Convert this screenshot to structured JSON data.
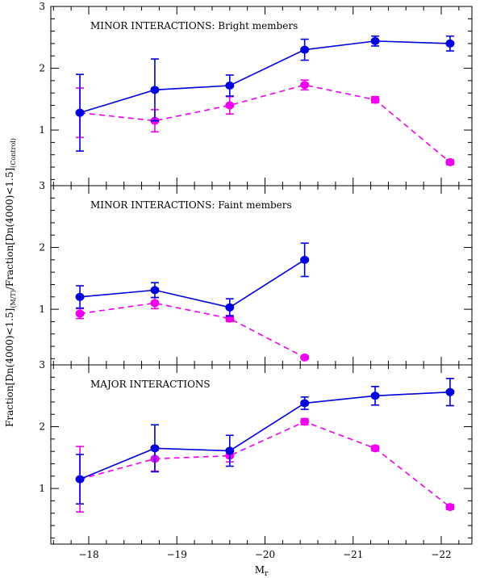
{
  "chart_data": {
    "type": "line",
    "xlabel": "M",
    "xlabel_subscript": "r",
    "ylabel_parts": [
      {
        "text": "Fraction[Dn(4000)<1.5]",
        "sub": false
      },
      {
        "text": "(M/T)",
        "sub": true
      },
      {
        "text": "/Fraction[Dn(4000)<1.5]",
        "sub": false
      },
      {
        "text": "(Control)",
        "sub": true
      }
    ],
    "x_ticks": [
      -18,
      -19,
      -20,
      -21,
      -22
    ],
    "x_tick_labels": [
      "−18",
      "−19",
      "−20",
      "−21",
      "−22"
    ],
    "xlim": [
      -17.5,
      -22.5
    ],
    "y_ticks": [
      1,
      2,
      3
    ],
    "y_tick_labels": [
      "1",
      "2",
      "3"
    ],
    "ylim": [
      0.1,
      3
    ],
    "x": [
      -17.9,
      -18.75,
      -19.6,
      -20.45,
      -21.25,
      -22.1
    ],
    "series_colors": {
      "blue": "#0000dd",
      "magenta": "#ee00ee"
    },
    "panels": [
      {
        "title": "MINOR INTERACTIONS: Bright members",
        "series": [
          {
            "name": "blue",
            "style": "solid",
            "values": [
              1.28,
              1.65,
              1.72,
              2.3,
              2.44,
              2.4
            ],
            "err": [
              0.62,
              0.5,
              0.17,
              0.17,
              0.08,
              0.12
            ],
            "x_index": [
              0,
              1,
              2,
              3,
              4,
              5
            ]
          },
          {
            "name": "magenta",
            "style": "dashed",
            "values": [
              1.28,
              1.15,
              1.4,
              1.73,
              1.49,
              0.48
            ],
            "err": [
              0.4,
              0.18,
              0.14,
              0.08,
              0.05,
              0.04
            ],
            "x_index": [
              0,
              1,
              2,
              3,
              4,
              5
            ]
          }
        ]
      },
      {
        "title": "MINOR INTERACTIONS: Faint members",
        "series": [
          {
            "name": "blue",
            "style": "solid",
            "values": [
              1.2,
              1.31,
              1.03,
              1.8
            ],
            "err": [
              0.18,
              0.12,
              0.14,
              0.27
            ],
            "x_index": [
              0,
              1,
              2,
              3
            ]
          },
          {
            "name": "magenta",
            "style": "dashed",
            "values": [
              0.93,
              1.1,
              0.85,
              0.22
            ],
            "err": [
              0.08,
              0.09,
              0.05,
              0.03
            ],
            "x_index": [
              0,
              1,
              2,
              3
            ]
          }
        ]
      },
      {
        "title": "MAJOR INTERACTIONS",
        "series": [
          {
            "name": "blue",
            "style": "solid",
            "values": [
              1.15,
              1.65,
              1.61,
              2.38,
              2.5,
              2.56
            ],
            "err": [
              0.4,
              0.38,
              0.25,
              0.1,
              0.15,
              0.22
            ],
            "x_index": [
              0,
              1,
              2,
              3,
              4,
              5
            ]
          },
          {
            "name": "magenta",
            "style": "dashed",
            "values": [
              1.15,
              1.48,
              1.53,
              2.08,
              1.65,
              0.7
            ],
            "err": [
              0.53,
              0.2,
              0.1,
              0.05,
              0.04,
              0.04
            ],
            "x_index": [
              0,
              1,
              2,
              3,
              4,
              5
            ]
          }
        ]
      }
    ]
  }
}
